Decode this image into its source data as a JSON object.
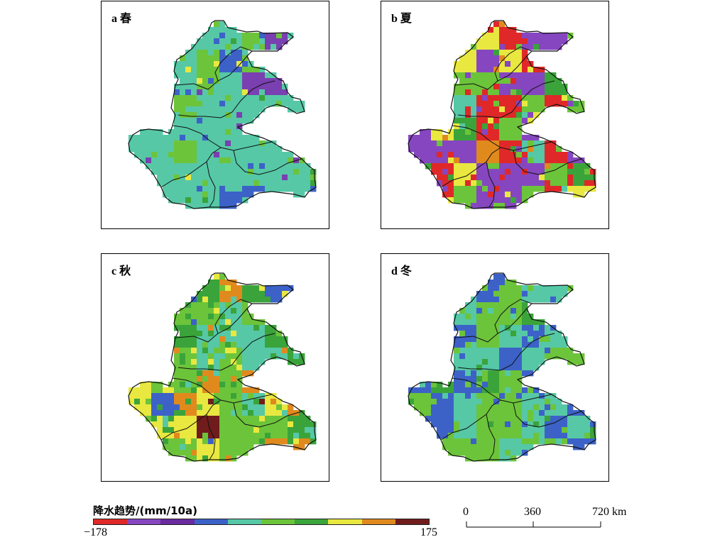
{
  "panels": [
    {
      "id": "a",
      "label": "a 春",
      "palette": [
        "#56c8a6",
        "#56c8a6",
        "#56c8a6",
        "#6cc43a",
        "#3c62c8",
        "#7a3fb0",
        "#e8e840",
        "#3aa43a"
      ],
      "weights": [
        5,
        5,
        4,
        3,
        2,
        1,
        0.3,
        1
      ]
    },
    {
      "id": "b",
      "label": "b 夏",
      "palette": [
        "#e02828",
        "#8646c0",
        "#6cc43a",
        "#3aa43a",
        "#e8e840",
        "#e08a1e",
        "#701c1c",
        "#56c8a6"
      ],
      "weights": [
        3,
        4,
        3,
        2,
        2,
        1,
        0.3,
        0.5
      ]
    },
    {
      "id": "c",
      "label": "c 秋",
      "palette": [
        "#3aa43a",
        "#6cc43a",
        "#56c8a6",
        "#e8e840",
        "#e08a1e",
        "#701c1c",
        "#3c62c8"
      ],
      "weights": [
        5,
        4,
        2,
        2.5,
        1,
        0.5,
        0.3
      ]
    },
    {
      "id": "d",
      "label": "d 冬",
      "palette": [
        "#6cc43a",
        "#56c8a6",
        "#3c62c8",
        "#3aa43a",
        "#701c1c"
      ],
      "weights": [
        5,
        4,
        3,
        1,
        0.05
      ]
    }
  ],
  "legend": {
    "title": "降水趋势/(mm/10a)",
    "min": "−178",
    "max": "175",
    "colors": [
      "#e02828",
      "#8646c0",
      "#6a2aa0",
      "#3c62c8",
      "#56c8a6",
      "#6cc43a",
      "#3aa43a",
      "#e8e840",
      "#e08a1e",
      "#701c1c"
    ]
  },
  "scalebar": {
    "ticks": [
      "0",
      "360",
      "720 km"
    ]
  }
}
